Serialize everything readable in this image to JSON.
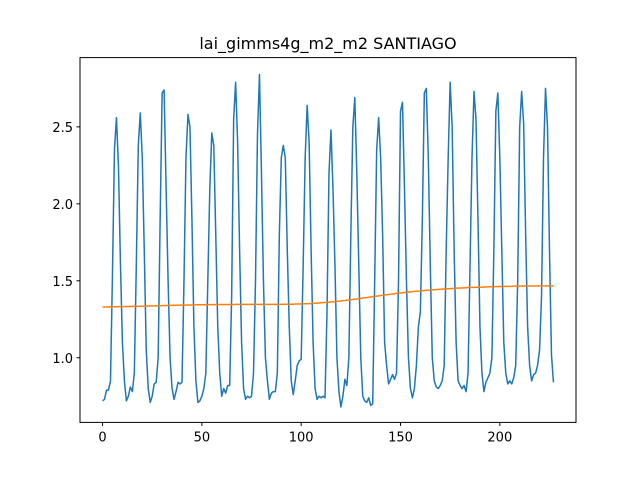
{
  "chart_data": {
    "type": "line",
    "title": "lai_gimms4g_m2_m2 SANTIAGO",
    "x": [
      0,
      1,
      2,
      3,
      4,
      5,
      6,
      7,
      8,
      9,
      10,
      11,
      12,
      13,
      14,
      15,
      16,
      17,
      18,
      19,
      20,
      21,
      22,
      23,
      24,
      25,
      26,
      27,
      28,
      29,
      30,
      31,
      32,
      33,
      34,
      35,
      36,
      37,
      38,
      39,
      40,
      41,
      42,
      43,
      44,
      45,
      46,
      47,
      48,
      49,
      50,
      51,
      52,
      53,
      54,
      55,
      56,
      57,
      58,
      59,
      60,
      61,
      62,
      63,
      64,
      65,
      66,
      67,
      68,
      69,
      70,
      71,
      72,
      73,
      74,
      75,
      76,
      77,
      78,
      79,
      80,
      81,
      82,
      83,
      84,
      85,
      86,
      87,
      88,
      89,
      90,
      91,
      92,
      93,
      94,
      95,
      96,
      97,
      98,
      99,
      100,
      101,
      102,
      103,
      104,
      105,
      106,
      107,
      108,
      109,
      110,
      111,
      112,
      113,
      114,
      115,
      116,
      117,
      118,
      119,
      120,
      121,
      122,
      123,
      124,
      125,
      126,
      127,
      128,
      129,
      130,
      131,
      132,
      133,
      134,
      135,
      136,
      137,
      138,
      139,
      140,
      141,
      142,
      143,
      144,
      145,
      146,
      147,
      148,
      149,
      150,
      151,
      152,
      153,
      154,
      155,
      156,
      157,
      158,
      159,
      160,
      161,
      162,
      163,
      164,
      165,
      166,
      167,
      168,
      169,
      170,
      171,
      172,
      173,
      174,
      175,
      176,
      177,
      178,
      179,
      180,
      181,
      182,
      183,
      184,
      185,
      186,
      187,
      188,
      189,
      190,
      191,
      192,
      193,
      194,
      195,
      196,
      197,
      198,
      199,
      200,
      201,
      202,
      203,
      204,
      205,
      206,
      207,
      208,
      209,
      210,
      211,
      212,
      213,
      214,
      215,
      216,
      217,
      218,
      219,
      220,
      221,
      222,
      223,
      224,
      225,
      226,
      227
    ],
    "series": [
      {
        "color": "#1f77b4",
        "values": [
          0.72,
          0.73,
          0.79,
          0.79,
          0.85,
          1.55,
          2.35,
          2.56,
          2.25,
          1.62,
          1.1,
          0.85,
          0.72,
          0.75,
          0.81,
          0.78,
          0.9,
          1.6,
          2.38,
          2.59,
          2.3,
          1.7,
          1.05,
          0.8,
          0.71,
          0.75,
          0.83,
          0.84,
          1.0,
          1.9,
          2.72,
          2.74,
          2.1,
          1.5,
          1.0,
          0.8,
          0.73,
          0.78,
          0.84,
          0.83,
          0.84,
          1.5,
          2.3,
          2.58,
          2.5,
          1.9,
          1.2,
          0.85,
          0.71,
          0.72,
          0.75,
          0.8,
          0.9,
          1.5,
          2.1,
          2.46,
          2.38,
          1.8,
          1.2,
          0.9,
          0.75,
          0.8,
          0.77,
          0.82,
          0.82,
          1.4,
          2.55,
          2.79,
          2.4,
          1.7,
          1.1,
          0.8,
          0.73,
          0.75,
          0.74,
          0.75,
          0.9,
          1.5,
          2.45,
          2.84,
          2.2,
          1.5,
          1.0,
          0.85,
          0.73,
          0.77,
          0.78,
          0.78,
          0.9,
          1.8,
          2.3,
          2.38,
          2.3,
          1.7,
          1.2,
          0.85,
          0.76,
          0.85,
          0.95,
          0.98,
          0.99,
          1.6,
          2.3,
          2.64,
          2.4,
          1.7,
          1.1,
          0.8,
          0.73,
          0.75,
          0.74,
          0.75,
          0.74,
          1.3,
          2.2,
          2.48,
          2.1,
          1.6,
          1.0,
          0.78,
          0.68,
          0.75,
          0.86,
          0.82,
          1.0,
          1.8,
          2.5,
          2.69,
          2.2,
          1.6,
          1.0,
          0.75,
          0.72,
          0.71,
          0.74,
          0.69,
          0.7,
          1.5,
          2.35,
          2.56,
          2.3,
          1.8,
          1.1,
          0.95,
          0.83,
          0.86,
          0.89,
          0.86,
          0.9,
          1.5,
          2.6,
          2.66,
          2.1,
          1.5,
          1.0,
          0.8,
          0.74,
          0.8,
          0.95,
          1.2,
          1.3,
          1.9,
          2.72,
          2.75,
          2.3,
          1.6,
          1.0,
          0.85,
          0.81,
          0.8,
          0.82,
          0.85,
          0.95,
          1.7,
          2.3,
          2.79,
          2.5,
          1.7,
          1.1,
          0.85,
          0.82,
          0.8,
          0.82,
          0.78,
          0.9,
          1.6,
          2.3,
          2.73,
          2.55,
          1.9,
          1.2,
          0.9,
          0.78,
          0.84,
          0.87,
          0.9,
          1.0,
          1.7,
          2.6,
          2.72,
          2.3,
          1.7,
          1.1,
          0.9,
          0.83,
          0.85,
          0.83,
          0.87,
          0.95,
          1.5,
          2.5,
          2.73,
          2.52,
          1.8,
          1.2,
          0.95,
          0.85,
          0.89,
          0.9,
          0.95,
          1.05,
          1.4,
          2.3,
          2.75,
          2.5,
          1.7,
          1.02,
          0.84
        ]
      },
      {
        "color": "#ff7f0e",
        "values": [
          1.33,
          1.33,
          1.33,
          1.33,
          1.331,
          1.331,
          1.331,
          1.331,
          1.332,
          1.332,
          1.332,
          1.332,
          1.333,
          1.333,
          1.333,
          1.334,
          1.334,
          1.334,
          1.335,
          1.335,
          1.335,
          1.336,
          1.336,
          1.336,
          1.337,
          1.337,
          1.337,
          1.338,
          1.338,
          1.338,
          1.339,
          1.339,
          1.339,
          1.34,
          1.34,
          1.34,
          1.341,
          1.341,
          1.341,
          1.342,
          1.342,
          1.342,
          1.342,
          1.343,
          1.343,
          1.343,
          1.343,
          1.344,
          1.344,
          1.344,
          1.344,
          1.344,
          1.345,
          1.345,
          1.345,
          1.345,
          1.345,
          1.345,
          1.346,
          1.346,
          1.346,
          1.346,
          1.346,
          1.346,
          1.346,
          1.346,
          1.346,
          1.347,
          1.347,
          1.347,
          1.347,
          1.347,
          1.347,
          1.347,
          1.347,
          1.347,
          1.347,
          1.347,
          1.347,
          1.347,
          1.347,
          1.347,
          1.347,
          1.347,
          1.347,
          1.347,
          1.347,
          1.347,
          1.347,
          1.347,
          1.347,
          1.348,
          1.348,
          1.348,
          1.348,
          1.348,
          1.348,
          1.349,
          1.349,
          1.349,
          1.35,
          1.35,
          1.351,
          1.351,
          1.352,
          1.352,
          1.353,
          1.354,
          1.355,
          1.356,
          1.357,
          1.358,
          1.359,
          1.36,
          1.361,
          1.362,
          1.364,
          1.365,
          1.366,
          1.368,
          1.369,
          1.371,
          1.372,
          1.374,
          1.376,
          1.377,
          1.379,
          1.381,
          1.382,
          1.384,
          1.386,
          1.388,
          1.39,
          1.391,
          1.393,
          1.395,
          1.397,
          1.399,
          1.401,
          1.402,
          1.404,
          1.406,
          1.408,
          1.409,
          1.411,
          1.413,
          1.414,
          1.416,
          1.418,
          1.419,
          1.421,
          1.422,
          1.424,
          1.425,
          1.427,
          1.428,
          1.429,
          1.431,
          1.432,
          1.433,
          1.434,
          1.436,
          1.437,
          1.438,
          1.439,
          1.44,
          1.441,
          1.442,
          1.443,
          1.444,
          1.445,
          1.446,
          1.447,
          1.448,
          1.448,
          1.449,
          1.45,
          1.451,
          1.452,
          1.452,
          1.453,
          1.454,
          1.454,
          1.455,
          1.456,
          1.456,
          1.457,
          1.457,
          1.458,
          1.458,
          1.459,
          1.459,
          1.46,
          1.46,
          1.461,
          1.461,
          1.461,
          1.462,
          1.462,
          1.462,
          1.463,
          1.463,
          1.463,
          1.464,
          1.464,
          1.464,
          1.464,
          1.465,
          1.465,
          1.465,
          1.465,
          1.465,
          1.466,
          1.466,
          1.466,
          1.466,
          1.466,
          1.466,
          1.467,
          1.467,
          1.467,
          1.467,
          1.467,
          1.467,
          1.467,
          1.467,
          1.467,
          1.467
        ]
      }
    ],
    "xlim": [
      -11.35,
      238.35
    ],
    "xticks": [
      0,
      50,
      100,
      150,
      200
    ],
    "ylim": [
      0.58,
      2.95
    ],
    "yticks": [
      {
        "value": 1,
        "label": "1.0"
      },
      1.5,
      {
        "value": 2,
        "label": "2.0"
      },
      2.5
    ]
  }
}
